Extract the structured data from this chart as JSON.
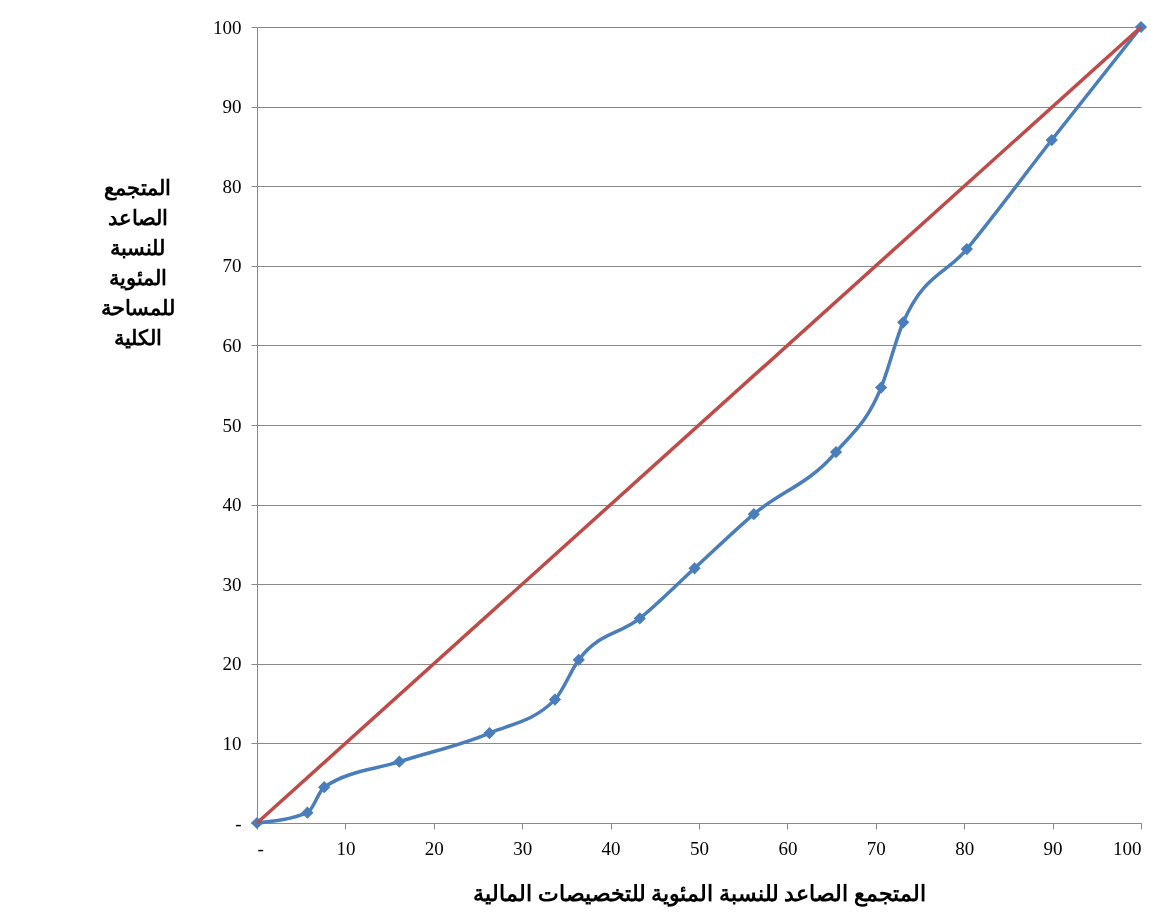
{
  "chart_data": {
    "type": "line",
    "xlabel": "المتجمع الصاعد للنسبة المئوية للتخصيصات المالية",
    "ylabel": "المتجمع الصاعد للنسبة المئوية للمساحة الكلية",
    "series": [
      {
        "color": "#4a7ebb",
        "marker": "diamond",
        "x": [
          0,
          5.7,
          7.6,
          16.1,
          26.3,
          33.7,
          36.4,
          43.3,
          49.5,
          56.2,
          65.5,
          70.6,
          73.1,
          80.3,
          89.9,
          100
        ],
        "values": [
          0,
          1.3,
          4.5,
          7.7,
          11.3,
          15.5,
          20.5,
          25.7,
          32.0,
          38.8,
          46.6,
          54.7,
          62.9,
          72.1,
          85.8,
          100
        ]
      },
      {
        "color": "#be4b48",
        "marker": "none",
        "x": [
          0,
          100
        ],
        "values": [
          0,
          100
        ]
      }
    ],
    "xlim": [
      0,
      100
    ],
    "ylim": [
      0,
      100
    ],
    "xticks": [
      {
        "value": 0,
        "label": "-"
      },
      10,
      20,
      30,
      40,
      50,
      60,
      70,
      80,
      90,
      100
    ],
    "yticks": [
      {
        "value": 0,
        "label": "-"
      },
      10,
      20,
      30,
      40,
      50,
      60,
      70,
      80,
      90,
      100
    ],
    "grid": "y"
  }
}
